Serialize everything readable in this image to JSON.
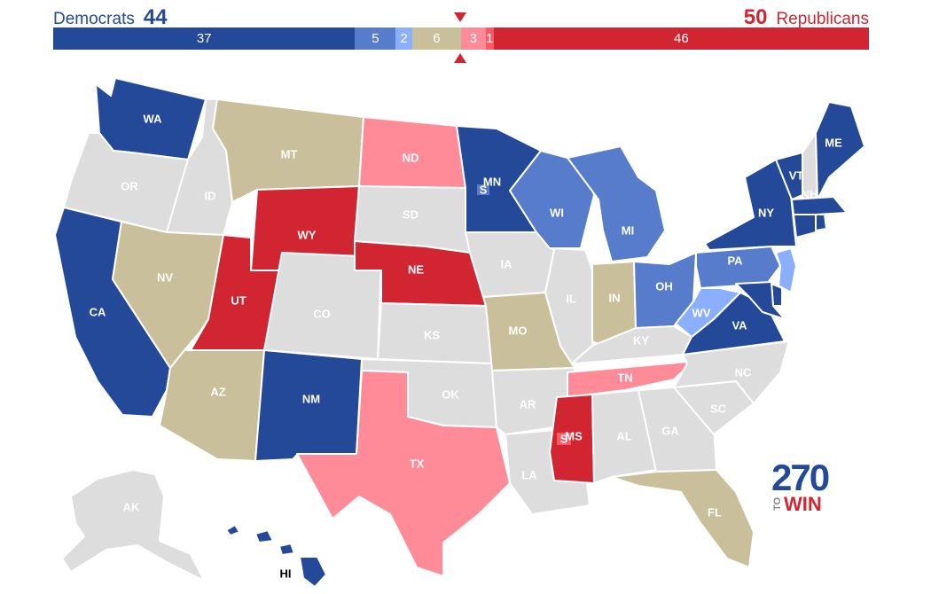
{
  "header": {
    "dem_label": "Democrats",
    "dem_total": "44",
    "rep_total": "50",
    "rep_label": "Republicans"
  },
  "bar": [
    {
      "value": 37,
      "label": "37",
      "color": "#244999",
      "category": "dem-safe"
    },
    {
      "value": 5,
      "label": "5",
      "color": "#577ccc",
      "category": "dem-likely"
    },
    {
      "value": 2,
      "label": "2",
      "color": "#8aafff",
      "category": "dem-lean"
    },
    {
      "value": 6,
      "label": "6",
      "color": "#c9c09b",
      "category": "tossup"
    },
    {
      "value": 3,
      "label": "3",
      "color": "#ff8b98",
      "category": "rep-lean"
    },
    {
      "value": 1,
      "label": "1",
      "color": "#ff5865",
      "category": "rep-likely"
    },
    {
      "value": 46,
      "label": "46",
      "color": "#d22532",
      "category": "rep-safe"
    }
  ],
  "colors": {
    "dem_safe": "#244999",
    "dem_likely": "#577ccc",
    "dem_lean": "#8aafff",
    "tossup": "#c9c09b",
    "rep_lean": "#ff8b98",
    "rep_likely": "#ff5865",
    "rep_safe": "#d22532",
    "no_race": "#dddddd"
  },
  "states": [
    {
      "abbr": "WA",
      "label": "WA",
      "rating": "dem_safe"
    },
    {
      "abbr": "OR",
      "label": "OR",
      "rating": "no_race"
    },
    {
      "abbr": "CA",
      "label": "CA",
      "rating": "dem_safe"
    },
    {
      "abbr": "ID",
      "label": "ID",
      "rating": "no_race"
    },
    {
      "abbr": "NV",
      "label": "NV",
      "rating": "tossup"
    },
    {
      "abbr": "MT",
      "label": "MT",
      "rating": "tossup"
    },
    {
      "abbr": "WY",
      "label": "WY",
      "rating": "rep_safe"
    },
    {
      "abbr": "UT",
      "label": "UT",
      "rating": "rep_safe"
    },
    {
      "abbr": "AZ",
      "label": "AZ",
      "rating": "tossup"
    },
    {
      "abbr": "CO",
      "label": "CO",
      "rating": "no_race"
    },
    {
      "abbr": "NM",
      "label": "NM",
      "rating": "dem_safe"
    },
    {
      "abbr": "ND",
      "label": "ND",
      "rating": "rep_lean"
    },
    {
      "abbr": "SD",
      "label": "SD",
      "rating": "no_race"
    },
    {
      "abbr": "NE",
      "label": "NE",
      "rating": "rep_safe"
    },
    {
      "abbr": "KS",
      "label": "KS",
      "rating": "no_race"
    },
    {
      "abbr": "OK",
      "label": "OK",
      "rating": "no_race"
    },
    {
      "abbr": "TX",
      "label": "TX",
      "rating": "rep_lean"
    },
    {
      "abbr": "MN",
      "label": "MN",
      "rating": "dem_safe"
    },
    {
      "abbr": "IA",
      "label": "IA",
      "rating": "no_race"
    },
    {
      "abbr": "MO",
      "label": "MO",
      "rating": "tossup"
    },
    {
      "abbr": "AR",
      "label": "AR",
      "rating": "no_race"
    },
    {
      "abbr": "LA",
      "label": "LA",
      "rating": "no_race"
    },
    {
      "abbr": "WI",
      "label": "WI",
      "rating": "dem_likely"
    },
    {
      "abbr": "IL",
      "label": "IL",
      "rating": "no_race"
    },
    {
      "abbr": "MI",
      "label": "MI",
      "rating": "dem_likely"
    },
    {
      "abbr": "IN",
      "label": "IN",
      "rating": "tossup"
    },
    {
      "abbr": "OH",
      "label": "OH",
      "rating": "dem_likely"
    },
    {
      "abbr": "KY",
      "label": "KY",
      "rating": "no_race"
    },
    {
      "abbr": "TN",
      "label": "TN",
      "rating": "rep_lean"
    },
    {
      "abbr": "MS",
      "label": "MS",
      "rating": "rep_safe"
    },
    {
      "abbr": "AL",
      "label": "AL",
      "rating": "no_race"
    },
    {
      "abbr": "GA",
      "label": "GA",
      "rating": "no_race"
    },
    {
      "abbr": "FL",
      "label": "FL",
      "rating": "tossup"
    },
    {
      "abbr": "SC",
      "label": "SC",
      "rating": "no_race"
    },
    {
      "abbr": "NC",
      "label": "NC",
      "rating": "no_race"
    },
    {
      "abbr": "VA",
      "label": "VA",
      "rating": "dem_safe"
    },
    {
      "abbr": "WV",
      "label": "WV",
      "rating": "dem_lean"
    },
    {
      "abbr": "PA",
      "label": "PA",
      "rating": "dem_likely"
    },
    {
      "abbr": "NY",
      "label": "NY",
      "rating": "dem_safe"
    },
    {
      "abbr": "VT",
      "label": "VT",
      "rating": "dem_safe"
    },
    {
      "abbr": "NH",
      "label": "NH",
      "rating": "no_race"
    },
    {
      "abbr": "ME",
      "label": "ME",
      "rating": "dem_safe"
    },
    {
      "abbr": "MA",
      "label": "",
      "rating": "dem_safe"
    },
    {
      "abbr": "CT",
      "label": "",
      "rating": "dem_safe"
    },
    {
      "abbr": "RI",
      "label": "",
      "rating": "dem_safe"
    },
    {
      "abbr": "NJ",
      "label": "",
      "rating": "dem_lean"
    },
    {
      "abbr": "DE",
      "label": "",
      "rating": "dem_safe"
    },
    {
      "abbr": "MD",
      "label": "",
      "rating": "dem_safe"
    },
    {
      "abbr": "AK",
      "label": "AK",
      "rating": "no_race"
    },
    {
      "abbr": "HI",
      "label": "HI",
      "rating": "dem_safe"
    }
  ],
  "specials": [
    {
      "state": "MN",
      "label": "S",
      "rating": "dem_likely"
    },
    {
      "state": "MS",
      "label": "S",
      "rating": "rep_likely"
    }
  ],
  "logo": {
    "number": "270",
    "to": "TO",
    "win": "WIN"
  }
}
